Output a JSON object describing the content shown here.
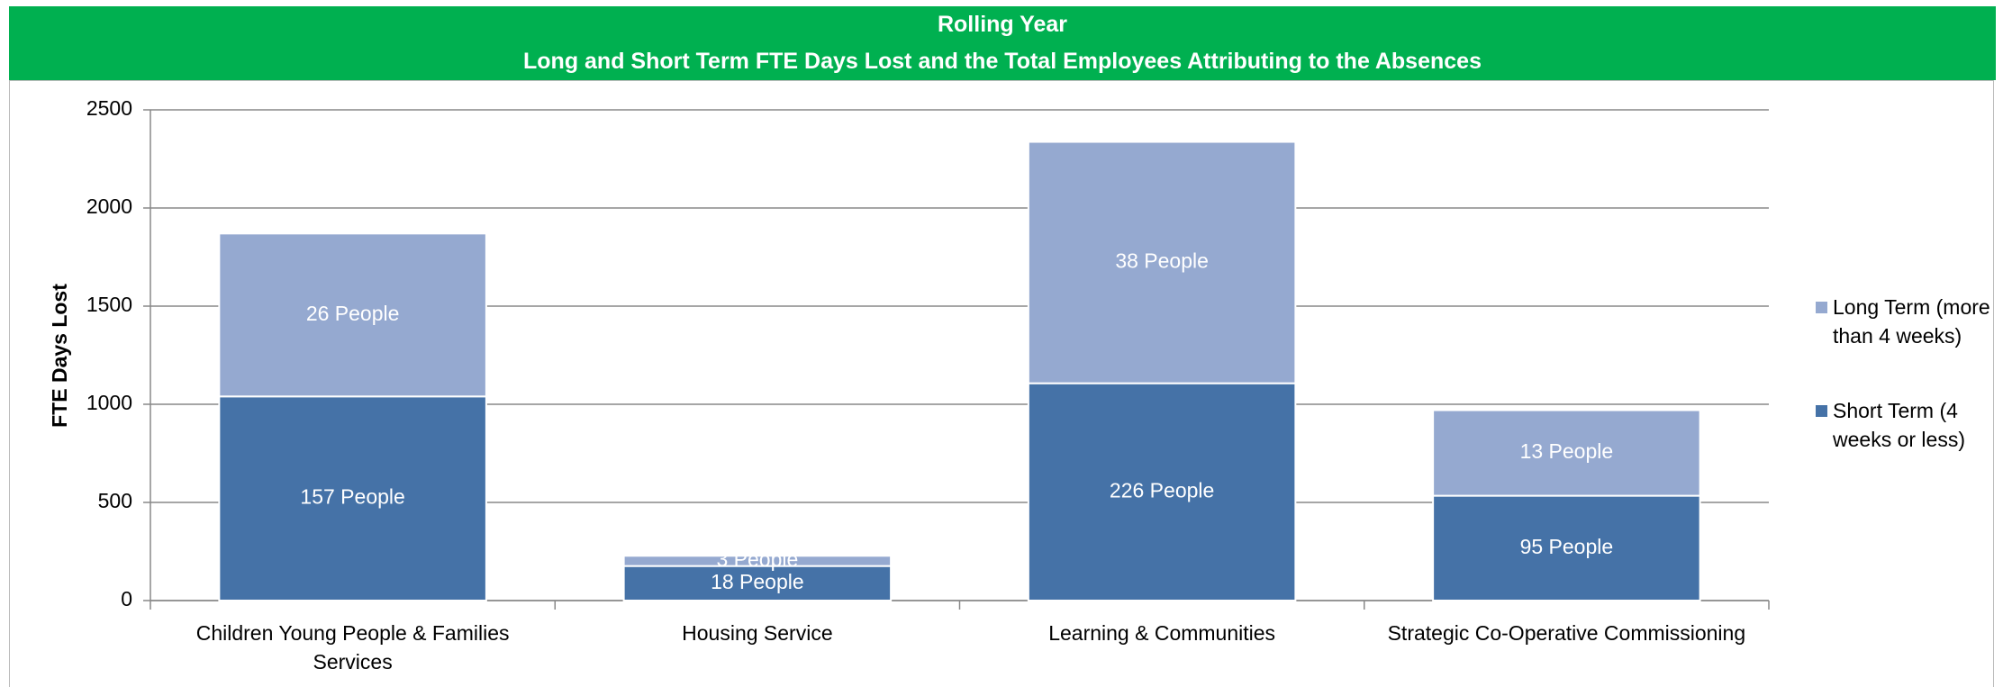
{
  "chart_data": {
    "type": "stacked_bar",
    "title": "Rolling Year",
    "subtitle": "Long and Short Term FTE Days Lost and the Total Employees Attributing to the Absences",
    "y_label": "FTE Days Lost",
    "categories": [
      "Children Young People & Families Services",
      "Housing Service",
      "Learning & Communities",
      "Strategic Co-Operative Commissioning"
    ],
    "series": [
      {
        "name": "Short Term (4 weeks or less)",
        "color": "#4572a7",
        "values": [
          1040,
          176,
          1107,
          534
        ],
        "data_labels": [
          "157 People",
          "18 People",
          "226 People",
          "95 People"
        ]
      },
      {
        "name": "Long Term (more than 4 weeks)",
        "color": "#95a9d0",
        "values": [
          830,
          52,
          1230,
          436
        ],
        "data_labels": [
          "26 People",
          "3 People",
          "38 People",
          "13 People"
        ]
      }
    ],
    "ylim": [
      0,
      2500
    ],
    "yticks": [
      0,
      500,
      1000,
      1500,
      2000,
      2500
    ],
    "grid": true,
    "legend": "right"
  }
}
